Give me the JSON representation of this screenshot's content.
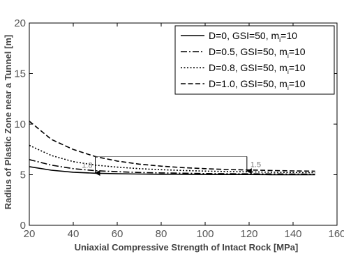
{
  "chart_data": {
    "type": "line",
    "title": "",
    "xlabel": "Uniaxial Compressive Strength of Intact Rock [MPa]",
    "ylabel": "Radius of Plastic Zone near a Tunnel [m]",
    "xlim": [
      20,
      160
    ],
    "ylim": [
      0,
      20
    ],
    "xticks": [
      20,
      40,
      60,
      80,
      100,
      120,
      140,
      160
    ],
    "yticks": [
      0,
      5,
      10,
      15,
      20
    ],
    "grid": false,
    "legend_position": "top-right",
    "x": [
      20,
      30,
      40,
      50,
      60,
      70,
      80,
      90,
      100,
      110,
      120,
      130,
      140,
      150
    ],
    "series": [
      {
        "name": "D=0,    GSI=50, m",
        "name_sub": "i",
        "name_suffix": "=10",
        "dash": "solid",
        "values": [
          5.8,
          5.45,
          5.25,
          5.15,
          5.1,
          5.07,
          5.05,
          5.04,
          5.03,
          5.02,
          5.02,
          5.01,
          5.01,
          5.0
        ]
      },
      {
        "name": "D=0.5, GSI=50, m",
        "name_sub": "i",
        "name_suffix": "=10",
        "dash": "dashdot",
        "values": [
          6.5,
          5.95,
          5.6,
          5.4,
          5.3,
          5.22,
          5.18,
          5.15,
          5.12,
          5.1,
          5.09,
          5.08,
          5.07,
          5.05
        ]
      },
      {
        "name": "D=0.8, GSI=50, m",
        "name_sub": "i",
        "name_suffix": "=10",
        "dash": "dotted",
        "values": [
          7.9,
          6.9,
          6.3,
          5.95,
          5.75,
          5.6,
          5.5,
          5.42,
          5.36,
          5.32,
          5.28,
          5.25,
          5.22,
          5.2
        ]
      },
      {
        "name": "D=1.0, GSI=50, m",
        "name_sub": "i",
        "name_suffix": "=10",
        "dash": "dashed",
        "values": [
          10.3,
          8.5,
          7.5,
          6.8,
          6.35,
          6.05,
          5.85,
          5.7,
          5.6,
          5.52,
          5.47,
          5.42,
          5.38,
          5.35
        ]
      }
    ],
    "annotations": [
      {
        "label": "1.8",
        "x": 50,
        "y_from": 6.8,
        "y_to": 5.1
      },
      {
        "label": "1.5",
        "x": 119,
        "y_from": 6.8,
        "y_to": 5.3
      }
    ],
    "reference_line": {
      "y": 6.8,
      "x_from": 50,
      "x_to": 119
    }
  }
}
